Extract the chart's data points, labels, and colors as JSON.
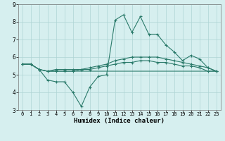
{
  "x": [
    0,
    1,
    2,
    3,
    4,
    5,
    6,
    7,
    8,
    9,
    10,
    11,
    12,
    13,
    14,
    15,
    16,
    17,
    18,
    19,
    20,
    21,
    22,
    23
  ],
  "line1": [
    5.6,
    5.6,
    5.3,
    4.7,
    4.6,
    4.6,
    4.0,
    3.2,
    4.3,
    4.9,
    5.0,
    8.1,
    8.4,
    7.4,
    8.3,
    7.3,
    7.3,
    6.7,
    6.3,
    5.8,
    6.1,
    5.9,
    5.4,
    5.2
  ],
  "line2": [
    5.6,
    5.6,
    5.3,
    5.2,
    5.3,
    5.3,
    5.3,
    5.3,
    5.4,
    5.5,
    5.6,
    5.8,
    5.9,
    6.0,
    6.0,
    6.0,
    6.0,
    5.9,
    5.8,
    5.7,
    5.6,
    5.5,
    5.4,
    5.2
  ],
  "line3": [
    5.6,
    5.6,
    5.3,
    5.2,
    5.2,
    5.2,
    5.2,
    5.3,
    5.3,
    5.4,
    5.5,
    5.6,
    5.7,
    5.7,
    5.8,
    5.8,
    5.7,
    5.7,
    5.6,
    5.5,
    5.5,
    5.4,
    5.2,
    5.2
  ],
  "line4": [
    5.6,
    5.6,
    5.3,
    5.2,
    5.2,
    5.2,
    5.2,
    5.2,
    5.2,
    5.2,
    5.2,
    5.2,
    5.2,
    5.2,
    5.2,
    5.2,
    5.2,
    5.2,
    5.2,
    5.2,
    5.2,
    5.2,
    5.2,
    5.2
  ],
  "line_color": "#2a7a6a",
  "bg_color": "#d6efef",
  "grid_color": "#aed4d4",
  "xlabel": "Humidex (Indice chaleur)",
  "ylim": [
    3,
    9
  ],
  "xlim": [
    -0.5,
    23.5
  ],
  "yticks": [
    3,
    4,
    5,
    6,
    7,
    8,
    9
  ],
  "xticks": [
    0,
    1,
    2,
    3,
    4,
    5,
    6,
    7,
    8,
    9,
    10,
    11,
    12,
    13,
    14,
    15,
    16,
    17,
    18,
    19,
    20,
    21,
    22,
    23
  ],
  "tick_fontsize": 5.0,
  "xlabel_fontsize": 6.5,
  "lw": 0.8,
  "marker_size": 3.5
}
